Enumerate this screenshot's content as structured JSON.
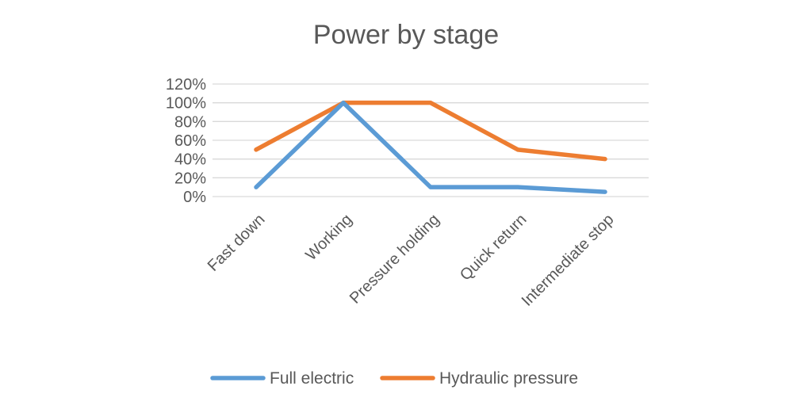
{
  "chart_data": {
    "type": "line",
    "title": "Power by stage",
    "categories": [
      "Fast down",
      "Working",
      "Pressure holding",
      "Quick return",
      "Intermediate stop"
    ],
    "series": [
      {
        "name": "Full electric",
        "color": "#5b9bd5",
        "values": [
          10,
          100,
          10,
          10,
          5
        ]
      },
      {
        "name": "Hydraulic pressure",
        "color": "#ed7d31",
        "values": [
          50,
          100,
          100,
          50,
          40
        ]
      }
    ],
    "yticks": [
      "0%",
      "20%",
      "40%",
      "60%",
      "80%",
      "100%",
      "120%"
    ],
    "ylim": [
      0,
      120
    ],
    "grid": true,
    "legend": "bottom"
  }
}
